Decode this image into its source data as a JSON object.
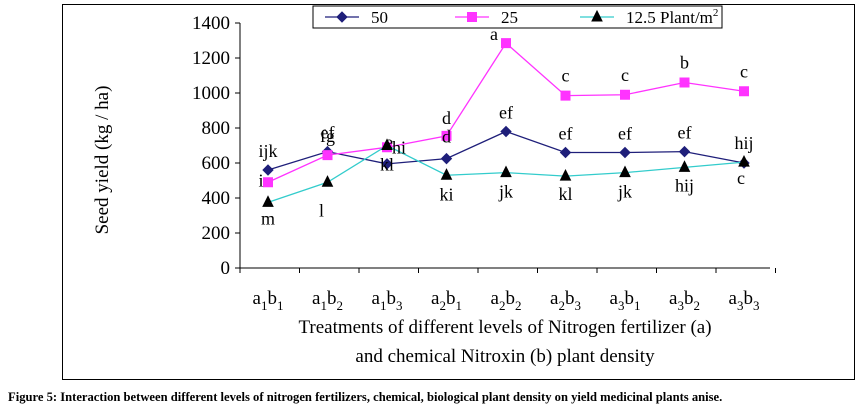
{
  "chart_data": {
    "type": "line",
    "xlabel_line1": "Treatments of different levels of Nitrogen fertilizer (a)",
    "xlabel_line2": "and chemical Nitroxin (b) plant density",
    "ylabel": "Seed yield (kg / ha)",
    "ylim": [
      0,
      1400
    ],
    "yticks": [
      0,
      200,
      400,
      600,
      800,
      1000,
      1200,
      1400
    ],
    "categories": [
      {
        "base1": "a",
        "sub1": "1",
        "base2": "b",
        "sub2": "1"
      },
      {
        "base1": "a",
        "sub1": "1",
        "base2": "b",
        "sub2": "2"
      },
      {
        "base1": "a",
        "sub1": "1",
        "base2": "b",
        "sub2": "3"
      },
      {
        "base1": "a",
        "sub1": "2",
        "base2": "b",
        "sub2": "1"
      },
      {
        "base1": "a",
        "sub1": "2",
        "base2": "b",
        "sub2": "2"
      },
      {
        "base1": "a",
        "sub1": "2",
        "base2": "b",
        "sub2": "3"
      },
      {
        "base1": "a",
        "sub1": "3",
        "base2": "b",
        "sub2": "1"
      },
      {
        "base1": "a",
        "sub1": "3",
        "base2": "b",
        "sub2": "2"
      },
      {
        "base1": "a",
        "sub1": "3",
        "base2": "b",
        "sub2": "3"
      }
    ],
    "series": [
      {
        "name": "50",
        "legend_suffix": "",
        "color": "#1f1f7a",
        "marker": "diamond",
        "values": [
          560,
          665,
          595,
          625,
          780,
          660,
          660,
          665,
          600
        ],
        "labels": [
          "ijk",
          "ef",
          "e",
          "d",
          "ef",
          "ef",
          "ef",
          "ef",
          "hij"
        ]
      },
      {
        "name": "25",
        "legend_suffix": "",
        "color": "#ff33ff",
        "marker": "square",
        "values": [
          490,
          645,
          690,
          755,
          1285,
          985,
          990,
          1060,
          1010
        ],
        "labels": [
          "i",
          "fg",
          "hi",
          "d",
          "a",
          "c",
          "c",
          "b",
          "c"
        ]
      },
      {
        "name": "12.5 Plant/m",
        "legend_suffix": "2",
        "color": "#33cccc",
        "marker": "triangle",
        "values": [
          375,
          490,
          700,
          530,
          545,
          525,
          545,
          575,
          605
        ],
        "labels": [
          "m",
          "l",
          "kl",
          "ki",
          "jk",
          "kl",
          "jk",
          "hij",
          "c"
        ]
      }
    ]
  },
  "caption": "Figure 5: Interaction between different levels of nitrogen fertilizers, chemical, biological plant density on yield medicinal plants anise."
}
